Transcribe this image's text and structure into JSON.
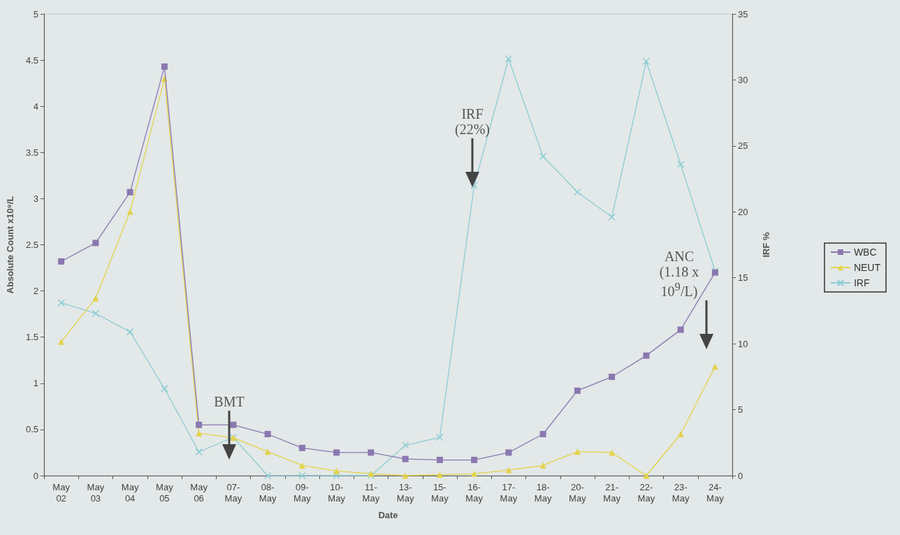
{
  "chart_data": {
    "type": "line",
    "xlabel": "Date",
    "ylabel": "Absolute Count x10⁹/L",
    "y2label": "IRF %",
    "categories": [
      "May 02",
      "May 03",
      "May 04",
      "May 05",
      "May 06",
      "07-May",
      "08-May",
      "09-May",
      "10-May",
      "11-May",
      "13-May",
      "15-May",
      "16-May",
      "17-May",
      "18-May",
      "20-May",
      "21-May",
      "22-May",
      "23-May",
      "24-May"
    ],
    "series": [
      {
        "name": "WBC",
        "color": "#8a78b0",
        "marker": "square",
        "values": [
          2.32,
          2.52,
          3.07,
          4.43,
          0.55,
          0.55,
          0.45,
          0.3,
          0.25,
          0.25,
          0.18,
          0.17,
          0.17,
          0.25,
          0.45,
          0.92,
          1.07,
          1.3,
          1.58,
          2.2
        ]
      },
      {
        "name": "NEUT",
        "color": "#e3d34a",
        "marker": "triangle",
        "values": [
          1.45,
          1.92,
          2.86,
          4.3,
          0.46,
          0.41,
          0.26,
          0.11,
          0.05,
          0.02,
          0,
          0.01,
          0.02,
          0.06,
          0.11,
          0.26,
          0.25,
          0,
          0.45,
          1.18
        ]
      },
      {
        "name": "IRF",
        "color": "#8ccdd4",
        "marker": "cross",
        "axis": "y2",
        "values": [
          13.1,
          12.3,
          10.9,
          6.6,
          1.8,
          2.9,
          0,
          0,
          0,
          0,
          2.3,
          2.9,
          22,
          31.6,
          24.2,
          21.5,
          19.6,
          31.4,
          23.6,
          15.5
        ]
      }
    ],
    "ylim": [
      0,
      5
    ],
    "yticks": [
      0,
      0.5,
      1,
      1.5,
      2,
      2.5,
      3,
      3.5,
      4,
      4.5,
      5
    ],
    "y2lim": [
      0,
      35
    ],
    "y2ticks": [
      0,
      5,
      10,
      15,
      20,
      25,
      30,
      35
    ],
    "legend": "right",
    "grid": false,
    "annotations": [
      "BMT",
      "IRF\n(22%)",
      "ANC\n(1.18 x\n10$^{9}$/L)"
    ]
  }
}
